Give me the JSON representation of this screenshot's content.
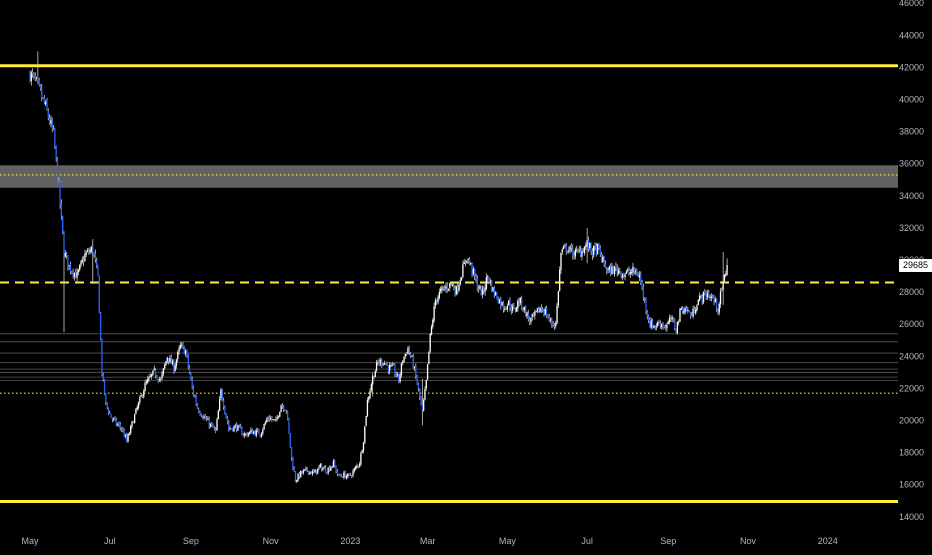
{
  "chart_data": {
    "type": "candlestick",
    "y_axis": {
      "side": "right",
      "range": [
        13300,
        46200
      ],
      "ticks": [
        14000,
        16000,
        18000,
        20000,
        22000,
        24000,
        26000,
        28000,
        30000,
        32000,
        34000,
        36000,
        38000,
        40000,
        42000,
        44000,
        46000
      ],
      "tick_labels": [
        "14000",
        "16000",
        "18000",
        "20000",
        "22000",
        "24000",
        "26000",
        "28000",
        "30000",
        "32000",
        "34000",
        "36000",
        "38000",
        "40000",
        "42000",
        "44000",
        "46000"
      ]
    },
    "x_axis": {
      "range_days": [
        0,
        590
      ],
      "ticks": [
        {
          "label": "May",
          "day": 0
        },
        {
          "label": "Jul",
          "day": 61
        },
        {
          "label": "Sep",
          "day": 123
        },
        {
          "label": "Nov",
          "day": 184
        },
        {
          "label": "2023",
          "day": 245
        },
        {
          "label": "Mar",
          "day": 304
        },
        {
          "label": "May",
          "day": 365
        },
        {
          "label": "Jul",
          "day": 426
        },
        {
          "label": "Sep",
          "day": 488
        },
        {
          "label": "Nov",
          "day": 549
        },
        {
          "label": "2024",
          "day": 610
        }
      ]
    },
    "last_price": "29685",
    "last_price_value": 29685,
    "colors": {
      "up": "#ffffff",
      "down": "#2962ff",
      "wick": "#cfcfcf",
      "level": "#ffeb3b",
      "zone": "#6b6b6b",
      "background": "#000000",
      "axis_text": "#b2b5be"
    },
    "levels": [
      {
        "price": 42100,
        "style": "solid"
      },
      {
        "price": 14950,
        "style": "solid"
      },
      {
        "price": 28600,
        "style": "dashed"
      },
      {
        "price": 35300,
        "style": "dotted"
      },
      {
        "price": 21700,
        "style": "dotted"
      }
    ],
    "zones": [
      {
        "from": 34500,
        "to": 35900
      }
    ],
    "thin_lines": [
      25400,
      24900,
      24200,
      23600,
      23200,
      23000,
      22700,
      22500
    ],
    "series_path": [
      [
        0,
        41600
      ],
      [
        5,
        41000
      ],
      [
        12,
        39500
      ],
      [
        18,
        37800
      ],
      [
        22,
        34500
      ],
      [
        26,
        30500
      ],
      [
        30,
        29600
      ],
      [
        36,
        29000
      ],
      [
        42,
        30300
      ],
      [
        48,
        30700
      ],
      [
        52,
        28900
      ],
      [
        55,
        23000
      ],
      [
        58,
        21000
      ],
      [
        62,
        20200
      ],
      [
        66,
        19800
      ],
      [
        70,
        19500
      ],
      [
        74,
        18700
      ],
      [
        80,
        20300
      ],
      [
        88,
        22200
      ],
      [
        95,
        23000
      ],
      [
        100,
        22500
      ],
      [
        105,
        24000
      ],
      [
        110,
        23300
      ],
      [
        115,
        24600
      ],
      [
        119,
        24300
      ],
      [
        124,
        22000
      ],
      [
        128,
        20800
      ],
      [
        133,
        20200
      ],
      [
        138,
        19700
      ],
      [
        142,
        19300
      ],
      [
        146,
        21800
      ],
      [
        152,
        19500
      ],
      [
        158,
        19600
      ],
      [
        164,
        19100
      ],
      [
        170,
        19300
      ],
      [
        176,
        19200
      ],
      [
        182,
        20200
      ],
      [
        188,
        19900
      ],
      [
        192,
        21000
      ],
      [
        196,
        20700
      ],
      [
        200,
        17600
      ],
      [
        203,
        16300
      ],
      [
        207,
        16700
      ],
      [
        212,
        16900
      ],
      [
        217,
        16700
      ],
      [
        222,
        17100
      ],
      [
        227,
        16900
      ],
      [
        232,
        17300
      ],
      [
        236,
        16500
      ],
      [
        240,
        16600
      ],
      [
        244,
        16500
      ],
      [
        248,
        16900
      ],
      [
        252,
        17400
      ],
      [
        255,
        18800
      ],
      [
        258,
        21200
      ],
      [
        262,
        22700
      ],
      [
        266,
        23600
      ],
      [
        270,
        23700
      ],
      [
        274,
        23300
      ],
      [
        278,
        23200
      ],
      [
        282,
        22500
      ],
      [
        285,
        23800
      ],
      [
        289,
        24500
      ],
      [
        293,
        23500
      ],
      [
        296,
        22300
      ],
      [
        300,
        20500
      ],
      [
        303,
        22400
      ],
      [
        306,
        25200
      ],
      [
        310,
        27500
      ],
      [
        314,
        28000
      ],
      [
        318,
        28300
      ],
      [
        322,
        28500
      ],
      [
        326,
        28100
      ],
      [
        330,
        29200
      ],
      [
        334,
        30200
      ],
      [
        338,
        29400
      ],
      [
        342,
        28400
      ],
      [
        346,
        27900
      ],
      [
        350,
        29000
      ],
      [
        354,
        28100
      ],
      [
        358,
        27600
      ],
      [
        362,
        27100
      ],
      [
        366,
        27300
      ],
      [
        370,
        26800
      ],
      [
        374,
        27500
      ],
      [
        378,
        26900
      ],
      [
        382,
        26200
      ],
      [
        386,
        26500
      ],
      [
        390,
        27000
      ],
      [
        394,
        26800
      ],
      [
        398,
        26100
      ],
      [
        402,
        26000
      ],
      [
        406,
        30400
      ],
      [
        410,
        30800
      ],
      [
        414,
        30500
      ],
      [
        418,
        30400
      ],
      [
        422,
        30600
      ],
      [
        426,
        31000
      ],
      [
        430,
        30500
      ],
      [
        434,
        30700
      ],
      [
        438,
        29900
      ],
      [
        442,
        29300
      ],
      [
        446,
        29400
      ],
      [
        450,
        29400
      ],
      [
        454,
        29100
      ],
      [
        458,
        29200
      ],
      [
        462,
        29300
      ],
      [
        466,
        29000
      ],
      [
        470,
        27400
      ],
      [
        474,
        26000
      ],
      [
        478,
        25900
      ],
      [
        482,
        26100
      ],
      [
        486,
        25800
      ],
      [
        490,
        26300
      ],
      [
        494,
        25700
      ],
      [
        498,
        27000
      ],
      [
        502,
        26900
      ],
      [
        506,
        26500
      ],
      [
        510,
        27400
      ],
      [
        514,
        27700
      ],
      [
        518,
        27900
      ],
      [
        522,
        27600
      ],
      [
        526,
        27000
      ],
      [
        530,
        28500
      ],
      [
        533,
        29685
      ]
    ],
    "spikes": [
      {
        "day": 6,
        "low": 41000,
        "high": 43000
      },
      {
        "day": 26,
        "low": 25500,
        "high": 30500
      },
      {
        "day": 48,
        "low": 28500,
        "high": 31300
      },
      {
        "day": 262,
        "low": 21500,
        "high": 22300
      },
      {
        "day": 300,
        "low": 19700,
        "high": 22600
      },
      {
        "day": 426,
        "low": 29800,
        "high": 32000
      },
      {
        "day": 530,
        "low": 27200,
        "high": 30500
      },
      {
        "day": 533,
        "low": 29300,
        "high": 30100
      }
    ]
  }
}
